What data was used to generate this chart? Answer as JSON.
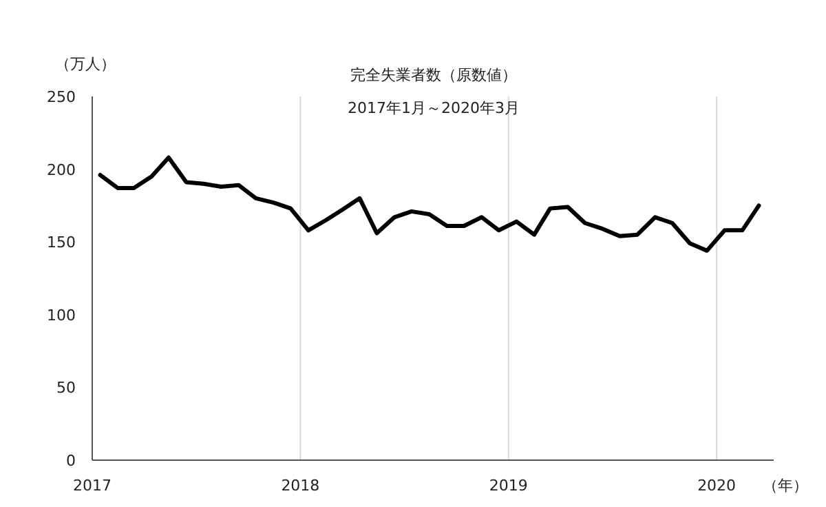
{
  "chart_data": {
    "type": "line",
    "title": "完全失業者数（原数値）",
    "subtitle": "2017年1月～2020年3月",
    "ylabel": "（万人）",
    "xlabel": "（年）",
    "x": [
      "2017-01-15",
      "2017-02-15",
      "2017-03-15",
      "2017-04-15",
      "2017-05-15",
      "2017-06-15",
      "2017-07-15",
      "2017-08-15",
      "2017-09-15",
      "2017-10-15",
      "2017-11-15",
      "2017-12-15",
      "2018-01-15",
      "2018-02-15",
      "2018-03-15",
      "2018-04-15",
      "2018-05-15",
      "2018-06-15",
      "2018-07-15",
      "2018-08-15",
      "2018-09-15",
      "2018-10-15",
      "2018-11-15",
      "2018-12-15",
      "2019-01-15",
      "2019-02-15",
      "2019-03-15",
      "2019-04-15",
      "2019-05-15",
      "2019-06-15",
      "2019-07-15",
      "2019-08-15",
      "2019-09-15",
      "2019-10-15",
      "2019-11-15",
      "2019-12-15",
      "2020-01-15",
      "2020-02-15",
      "2020-03-15"
    ],
    "series": [
      {
        "color": "#000000",
        "values": [
          196,
          187,
          187,
          195,
          208,
          191,
          190,
          188,
          189,
          180,
          177,
          173,
          158,
          165,
          172,
          180,
          156,
          167,
          171,
          169,
          161,
          161,
          167,
          158,
          164,
          155,
          173,
          174,
          163,
          159,
          154,
          155,
          167,
          163,
          149,
          144,
          158,
          158,
          175
        ]
      }
    ],
    "xlim": [
      "2017-01-01",
      "2020-04-10"
    ],
    "xticks": [
      {
        "value": "2017-01-01",
        "label": "2017"
      },
      {
        "value": "2018-01-01",
        "label": "2018"
      },
      {
        "value": "2019-01-01",
        "label": "2019"
      },
      {
        "value": "2020-01-01",
        "label": "2020"
      }
    ],
    "ylim": [
      0,
      250
    ],
    "yticks": [
      0,
      50,
      100,
      150,
      200,
      250
    ],
    "grid": "x"
  }
}
